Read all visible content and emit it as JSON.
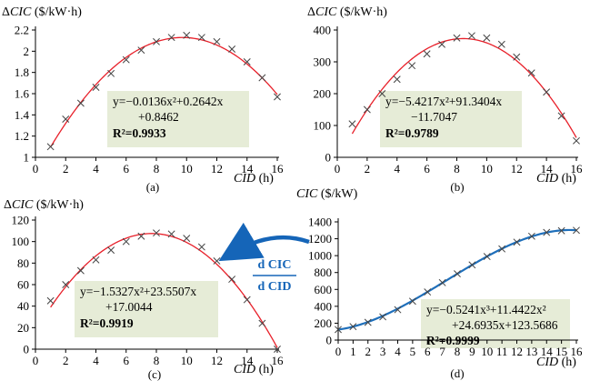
{
  "chart_data": [
    {
      "type": "scatter",
      "panel_label": "(a)",
      "ylabel": "ΔCIC ($/kW·h)",
      "xlabel": "CID (h)",
      "xlim": [
        0,
        16
      ],
      "ylim": [
        1,
        2.2
      ],
      "x_ticks": [
        0,
        2,
        4,
        6,
        8,
        10,
        12,
        14,
        16
      ],
      "y_ticks": [
        1,
        1.2,
        1.4,
        1.6,
        1.8,
        2,
        2.2
      ],
      "marker": "x",
      "points": {
        "x": [
          1,
          2,
          3,
          4,
          5,
          6,
          7,
          8,
          9,
          10,
          11,
          12,
          13,
          14,
          15,
          16
        ],
        "y": [
          1.1,
          1.36,
          1.51,
          1.66,
          1.79,
          1.92,
          2.01,
          2.09,
          2.13,
          2.15,
          2.13,
          2.09,
          2.02,
          1.9,
          1.75,
          1.57
        ]
      },
      "fit": {
        "kind": "poly",
        "coeffs": [
          0.8462,
          0.2642,
          -0.0136
        ],
        "color": "#e8202a",
        "x_range": [
          1,
          16
        ]
      },
      "equation": [
        "y=−0.0136x²+0.2642x",
        "+0.8462",
        "R²=0.9933"
      ]
    },
    {
      "type": "scatter",
      "panel_label": "(b)",
      "ylabel": "ΔCIC ($/kW·h)",
      "xlabel": "CID (h)",
      "xlim": [
        0,
        16
      ],
      "ylim": [
        0,
        400
      ],
      "x_ticks": [
        0,
        2,
        4,
        6,
        8,
        10,
        12,
        14,
        16
      ],
      "y_ticks": [
        0,
        100,
        200,
        300,
        400
      ],
      "marker": "x",
      "points": {
        "x": [
          1,
          2,
          3,
          4,
          5,
          6,
          7,
          8,
          9,
          10,
          11,
          12,
          13,
          14,
          15,
          16
        ],
        "y": [
          105,
          150,
          200,
          245,
          288,
          325,
          355,
          375,
          382,
          375,
          355,
          315,
          265,
          205,
          130,
          52
        ]
      },
      "fit": {
        "kind": "poly",
        "coeffs": [
          -11.7047,
          91.3404,
          -5.4217
        ],
        "color": "#e8202a",
        "x_range": [
          1,
          16
        ]
      },
      "equation": [
        "y=−5.4217x²+91.3404x",
        "−11.7047",
        "R²=0.9789"
      ]
    },
    {
      "type": "scatter",
      "panel_label": "(c)",
      "ylabel": "ΔCIC ($/kW·h)",
      "xlabel": "CID (h)",
      "xlim": [
        0,
        16
      ],
      "ylim": [
        0,
        120
      ],
      "x_ticks": [
        0,
        2,
        4,
        6,
        8,
        10,
        12,
        14,
        16
      ],
      "y_ticks": [
        0,
        20,
        40,
        60,
        80,
        100,
        120
      ],
      "marker": "x",
      "points": {
        "x": [
          1,
          2,
          3,
          4,
          5,
          6,
          7,
          8,
          9,
          10,
          11,
          12,
          13,
          14,
          15,
          16
        ],
        "y": [
          45,
          60,
          73,
          83,
          92,
          100,
          105,
          108,
          107,
          103,
          95,
          82,
          65,
          46,
          24,
          0
        ]
      },
      "fit": {
        "kind": "poly",
        "coeffs": [
          17.0044,
          23.5507,
          -1.5327
        ],
        "color": "#e8202a",
        "x_range": [
          1,
          16
        ]
      },
      "equation": [
        "y=−1.5327x²+23.5507x",
        "+17.0044",
        "R²=0.9919"
      ]
    },
    {
      "type": "line",
      "panel_label": "(d)",
      "ylabel": "CIC ($/kW)",
      "xlabel": "CID (h)",
      "xlim": [
        0,
        16
      ],
      "ylim": [
        0,
        1400
      ],
      "x_ticks": [
        0,
        1,
        2,
        3,
        4,
        5,
        6,
        7,
        8,
        9,
        10,
        11,
        12,
        13,
        14,
        15,
        16
      ],
      "y_ticks": [
        0,
        200,
        400,
        600,
        800,
        1000,
        1200,
        1400
      ],
      "marker": "x",
      "points": {
        "x": [
          0,
          1,
          2,
          3,
          4,
          5,
          6,
          7,
          8,
          9,
          10,
          11,
          12,
          13,
          14,
          15,
          16
        ],
        "y": [
          125,
          160,
          210,
          275,
          360,
          460,
          570,
          680,
          785,
          890,
          990,
          1080,
          1160,
          1230,
          1275,
          1295,
          1300
        ]
      },
      "fit": {
        "kind": "poly",
        "coeffs": [
          123.5686,
          24.6935,
          11.4422,
          -0.5241
        ],
        "color": "#1f6fba",
        "x_range": [
          0,
          16
        ]
      },
      "equation": [
        "y=−0.5241x³+11.4422x²",
        "+24.6935x+123.5686",
        "R²=0.9999"
      ]
    }
  ],
  "derivative_label": {
    "numerator": "d CIC",
    "denominator": "d CID"
  },
  "colors": {
    "fit_red": "#e8202a",
    "fit_blue": "#1f6fba",
    "arrow": "#1565b8",
    "eq_box": "#e6ecd7"
  }
}
